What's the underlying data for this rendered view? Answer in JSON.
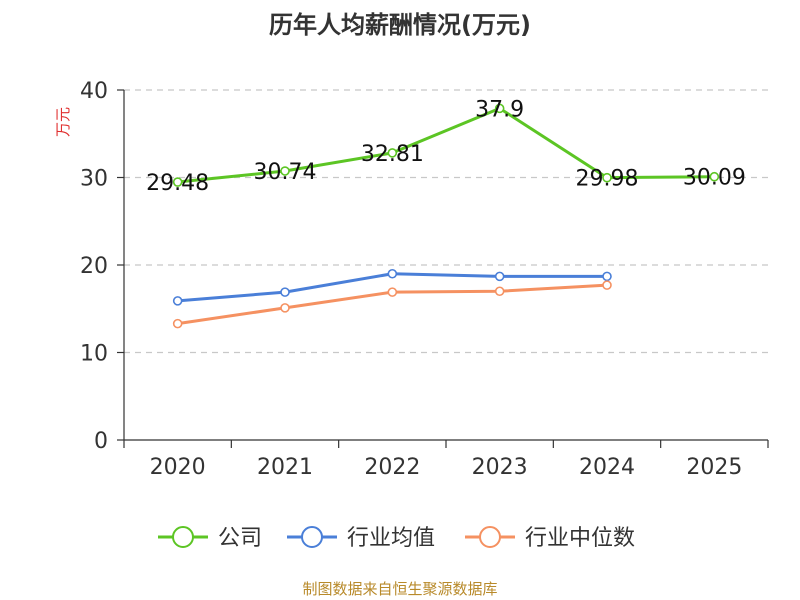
{
  "chart_data": {
    "type": "line",
    "title": "历年人均薪酬情况(万元)",
    "ylabel": "万元",
    "xlabel": "",
    "categories": [
      "2020",
      "2021",
      "2022",
      "2023",
      "2024",
      "2025"
    ],
    "ylim": [
      0,
      40
    ],
    "yticks": [
      0,
      10,
      20,
      30,
      40
    ],
    "grid": true,
    "legend_position": "bottom",
    "series": [
      {
        "name": "公司",
        "color": "#5cc524",
        "values": [
          29.48,
          30.74,
          32.81,
          37.9,
          29.98,
          30.09
        ],
        "labels": [
          "29.48",
          "30.74",
          "32.81",
          "37.9",
          "29.98",
          "30.09"
        ]
      },
      {
        "name": "行业均值",
        "color": "#4a7fd8",
        "values": [
          15.9,
          16.9,
          19.0,
          18.7,
          18.7,
          null
        ]
      },
      {
        "name": "行业中位数",
        "color": "#f59161",
        "values": [
          13.3,
          15.1,
          16.9,
          17.0,
          17.7,
          null
        ]
      }
    ],
    "source": "制图数据来自恒生聚源数据库"
  }
}
